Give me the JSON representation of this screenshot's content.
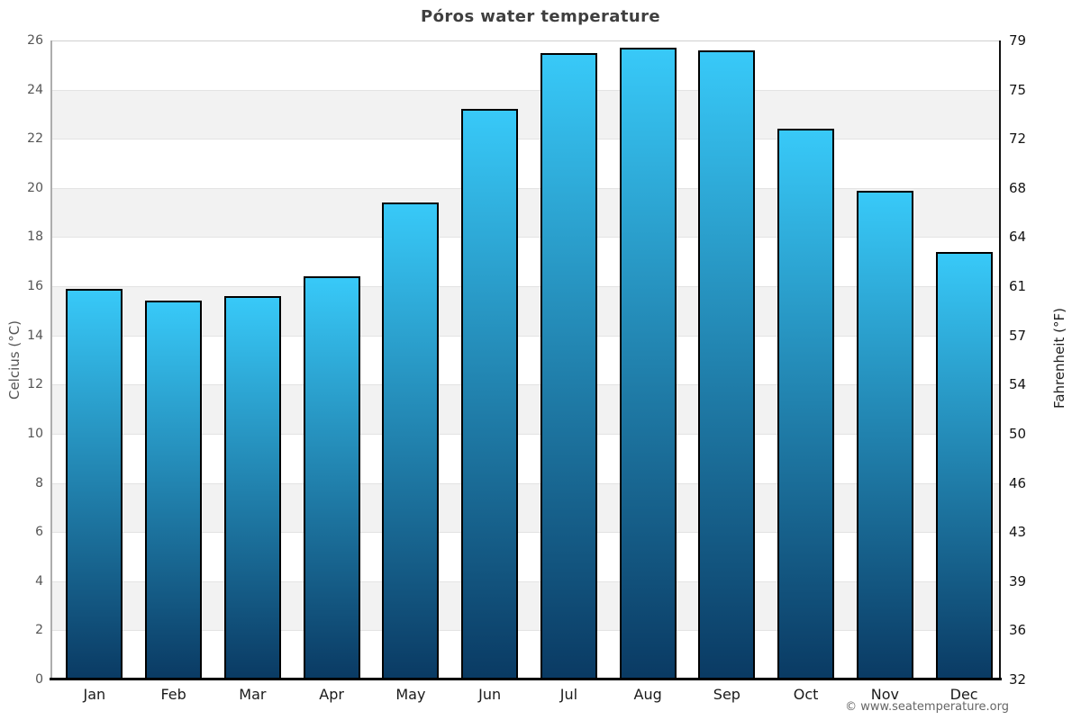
{
  "title": "Póros water temperature",
  "footer": "© www.seatemperature.org",
  "chart_data": {
    "type": "bar",
    "title": "Póros water temperature",
    "categories": [
      "Jan",
      "Feb",
      "Mar",
      "Apr",
      "May",
      "Jun",
      "Jul",
      "Aug",
      "Sep",
      "Oct",
      "Nov",
      "Dec"
    ],
    "values": [
      15.9,
      15.4,
      15.6,
      16.4,
      19.4,
      23.2,
      25.5,
      25.7,
      25.6,
      22.4,
      19.9,
      17.4
    ],
    "unit": "°C",
    "ylabel_left": "Celcius (°C)",
    "ylabel_right": "Fahrenheit (°F)",
    "ylim": [
      0,
      26
    ],
    "y_ticks_celsius": [
      0,
      2,
      4,
      6,
      8,
      10,
      12,
      14,
      16,
      18,
      20,
      22,
      24,
      26
    ],
    "y_ticks_fahrenheit": [
      32,
      36,
      39,
      43,
      46,
      50,
      54,
      57,
      61,
      64,
      68,
      72,
      75,
      79
    ],
    "grid": "horizontal gridlines every 2 °C with alternating gray bands on 2-4, 6-8, 10-12, 14-16, 18-20, 22-24",
    "legend": "none",
    "colors": {
      "bar_gradient_top": "#38c9f8",
      "bar_gradient_bottom": "#0a3a63",
      "bar_border": "#000000",
      "band_gray": "#f2f2f2",
      "gridline": "#e3e3e3",
      "top_gridline": "#cfcfcf",
      "left_axis_line": "#adadad",
      "right_axis_line": "#111111",
      "bottom_axis_line": "#000000",
      "title_text": "#3f3f3f",
      "left_tick_text": "#555555",
      "right_tick_text": "#141414",
      "month_text": "#1a1a1a",
      "footer_text": "#666666"
    }
  }
}
